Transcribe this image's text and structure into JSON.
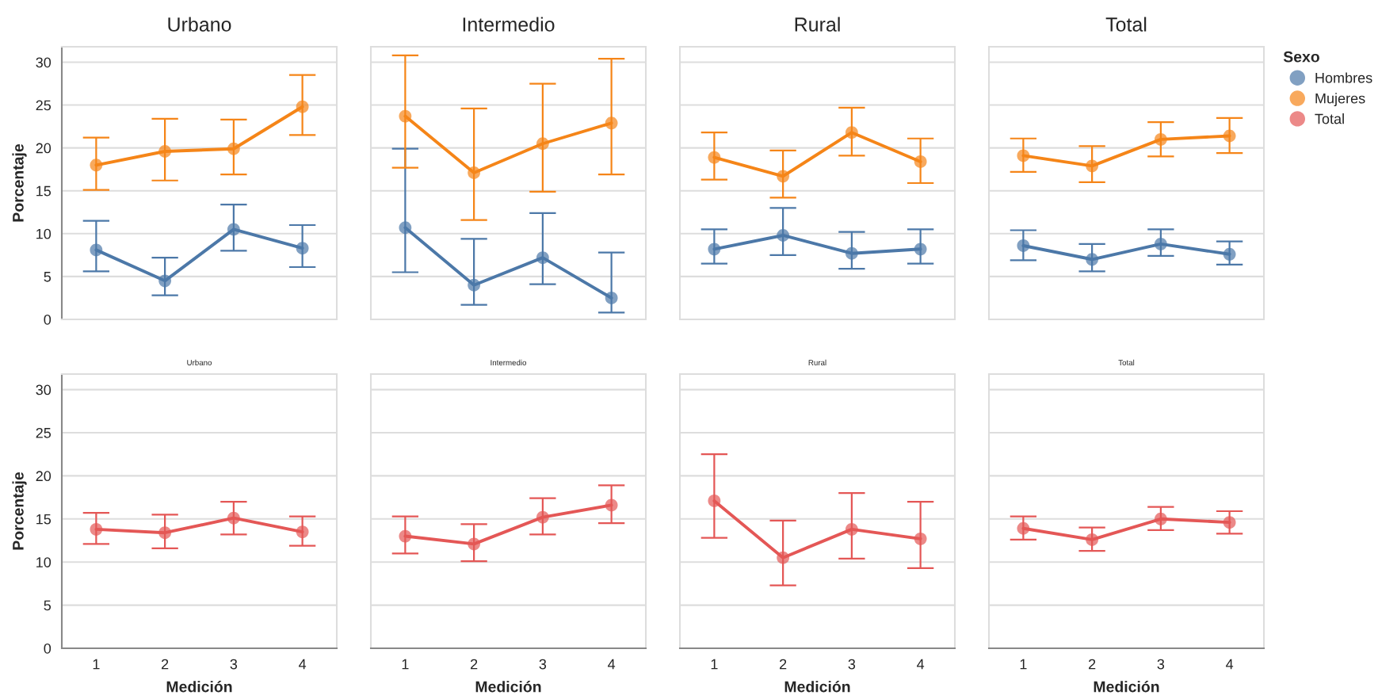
{
  "chart_data": [
    {
      "type": "line",
      "title": "Urbano",
      "categories": [
        "1",
        "2",
        "3",
        "4"
      ],
      "ylabel": "Porcentaje",
      "ylim": [
        0,
        31.8
      ],
      "yticks": [
        0,
        5,
        10,
        15,
        20,
        25,
        30
      ],
      "grid": "y",
      "marker": "circle",
      "tick_labels": "y",
      "legend": "right",
      "legend_title": "Sexo",
      "series": [
        {
          "name": "Hombres",
          "color": "#4c78a8",
          "values": [
            8.1,
            4.5,
            10.5,
            8.3
          ],
          "errors": [
            [
              5.6,
              11.5
            ],
            [
              2.8,
              7.2
            ],
            [
              8.0,
              13.4
            ],
            [
              6.1,
              11.0
            ]
          ]
        },
        {
          "name": "Mujeres",
          "color": "#f58518",
          "values": [
            18.0,
            19.6,
            19.9,
            24.8
          ],
          "errors": [
            [
              15.1,
              21.2
            ],
            [
              16.2,
              23.4
            ],
            [
              16.9,
              23.3
            ],
            [
              21.5,
              28.5
            ]
          ]
        }
      ]
    },
    {
      "type": "line",
      "title": "Intermedio",
      "categories": [
        "1",
        "2",
        "3",
        "4"
      ],
      "ylim": [
        0,
        31.8
      ],
      "yticks": [
        0,
        5,
        10,
        15,
        20,
        25,
        30
      ],
      "grid": "y",
      "marker": "circle",
      "tick_labels": false,
      "series": [
        {
          "name": "Hombres",
          "color": "#4c78a8",
          "values": [
            10.7,
            4.0,
            7.2,
            2.5
          ],
          "errors": [
            [
              5.5,
              19.9
            ],
            [
              1.7,
              9.4
            ],
            [
              4.1,
              12.4
            ],
            [
              0.8,
              7.8
            ]
          ]
        },
        {
          "name": "Mujeres",
          "color": "#f58518",
          "values": [
            23.7,
            17.1,
            20.5,
            22.9
          ],
          "errors": [
            [
              17.7,
              30.8
            ],
            [
              11.6,
              24.6
            ],
            [
              14.9,
              27.5
            ],
            [
              16.9,
              30.4
            ]
          ]
        }
      ]
    },
    {
      "type": "line",
      "title": "Rural",
      "categories": [
        "1",
        "2",
        "3",
        "4"
      ],
      "ylim": [
        0,
        31.8
      ],
      "yticks": [
        0,
        5,
        10,
        15,
        20,
        25,
        30
      ],
      "grid": "y",
      "marker": "circle",
      "tick_labels": false,
      "series": [
        {
          "name": "Hombres",
          "color": "#4c78a8",
          "values": [
            8.2,
            9.8,
            7.7,
            8.2
          ],
          "errors": [
            [
              6.5,
              10.5
            ],
            [
              7.5,
              13.0
            ],
            [
              5.9,
              10.2
            ],
            [
              6.5,
              10.5
            ]
          ]
        },
        {
          "name": "Mujeres",
          "color": "#f58518",
          "values": [
            18.9,
            16.7,
            21.8,
            18.4
          ],
          "errors": [
            [
              16.3,
              21.8
            ],
            [
              14.2,
              19.7
            ],
            [
              19.1,
              24.7
            ],
            [
              15.9,
              21.1
            ]
          ]
        }
      ]
    },
    {
      "type": "line",
      "title": "Total",
      "categories": [
        "1",
        "2",
        "3",
        "4"
      ],
      "ylim": [
        0,
        31.8
      ],
      "yticks": [
        0,
        5,
        10,
        15,
        20,
        25,
        30
      ],
      "grid": "y",
      "marker": "circle",
      "tick_labels": false,
      "series": [
        {
          "name": "Hombres",
          "color": "#4c78a8",
          "values": [
            8.6,
            7.0,
            8.8,
            7.6
          ],
          "errors": [
            [
              6.9,
              10.4
            ],
            [
              5.6,
              8.8
            ],
            [
              7.4,
              10.5
            ],
            [
              6.4,
              9.1
            ]
          ]
        },
        {
          "name": "Mujeres",
          "color": "#f58518",
          "values": [
            19.1,
            17.9,
            21.0,
            21.4
          ],
          "errors": [
            [
              17.2,
              21.1
            ],
            [
              16.0,
              20.2
            ],
            [
              19.0,
              23.0
            ],
            [
              19.4,
              23.5
            ]
          ]
        }
      ]
    },
    {
      "type": "line",
      "title": "Urbano",
      "categories": [
        "1",
        "2",
        "3",
        "4"
      ],
      "xlabel": "Medición",
      "ylabel": "Porcentaje",
      "ylim": [
        0,
        31.8
      ],
      "yticks": [
        0,
        5,
        10,
        15,
        20,
        25,
        30
      ],
      "grid": "y",
      "marker": "circle",
      "series": [
        {
          "name": "Total",
          "color": "#e45756",
          "values": [
            13.8,
            13.4,
            15.1,
            13.5
          ],
          "errors": [
            [
              12.1,
              15.7
            ],
            [
              11.6,
              15.5
            ],
            [
              13.2,
              17.0
            ],
            [
              11.9,
              15.3
            ]
          ]
        }
      ]
    },
    {
      "type": "line",
      "title": "Intermedio",
      "categories": [
        "1",
        "2",
        "3",
        "4"
      ],
      "xlabel": "Medición",
      "ylim": [
        0,
        31.8
      ],
      "yticks": [
        0,
        5,
        10,
        15,
        20,
        25,
        30
      ],
      "grid": "y",
      "marker": "circle",
      "tick_labels": "x",
      "series": [
        {
          "color": "#e45756",
          "values": [
            13.0,
            12.1,
            15.2,
            16.6
          ],
          "errors": [
            [
              11.0,
              15.3
            ],
            [
              10.1,
              14.4
            ],
            [
              13.2,
              17.4
            ],
            [
              14.5,
              18.9
            ]
          ]
        }
      ]
    },
    {
      "type": "line",
      "title": "Rural",
      "categories": [
        "1",
        "2",
        "3",
        "4"
      ],
      "xlabel": "Medición",
      "ylim": [
        0,
        31.8
      ],
      "yticks": [
        0,
        5,
        10,
        15,
        20,
        25,
        30
      ],
      "grid": "y",
      "marker": "circle",
      "tick_labels": "x",
      "series": [
        {
          "color": "#e45756",
          "values": [
            17.1,
            10.5,
            13.8,
            12.7
          ],
          "errors": [
            [
              12.8,
              22.5
            ],
            [
              7.3,
              14.8
            ],
            [
              10.4,
              18.0
            ],
            [
              9.3,
              17.0
            ]
          ]
        }
      ]
    },
    {
      "type": "line",
      "title": "Total",
      "categories": [
        "1",
        "2",
        "3",
        "4"
      ],
      "xlabel": "Medición",
      "ylim": [
        0,
        31.8
      ],
      "yticks": [
        0,
        5,
        10,
        15,
        20,
        25,
        30
      ],
      "grid": "y",
      "marker": "circle",
      "tick_labels": "x",
      "series": [
        {
          "color": "#e45756",
          "values": [
            13.9,
            12.6,
            15.0,
            14.6
          ],
          "errors": [
            [
              12.6,
              15.3
            ],
            [
              11.3,
              14.0
            ],
            [
              13.7,
              16.4
            ],
            [
              13.3,
              15.9
            ]
          ]
        }
      ]
    }
  ]
}
